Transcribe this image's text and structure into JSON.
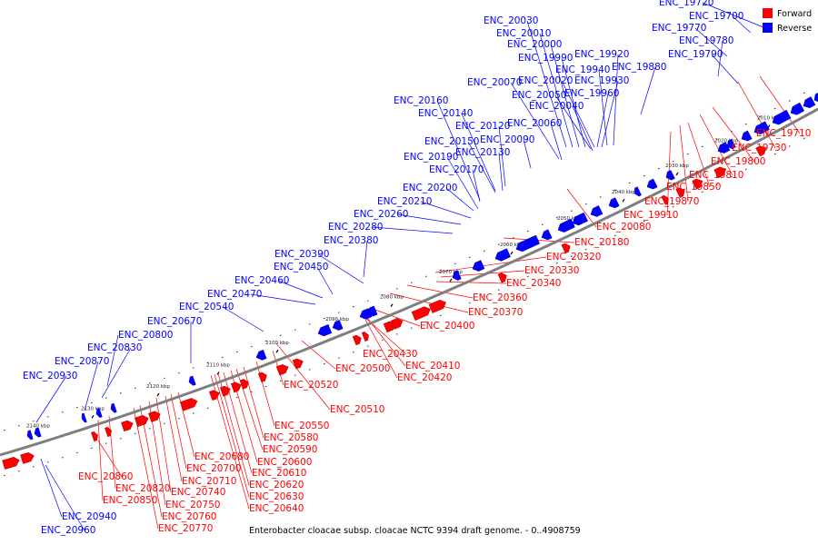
{
  "caption": "Enterobacter cloacae subsp. cloacae NCTC 9394 draft genome. - 0..4908759",
  "legend": [
    {
      "label": "Forward",
      "color": "#ff0000"
    },
    {
      "label": "Reverse",
      "color": "#0000ff"
    }
  ],
  "colors": {
    "forward": "#ff0000",
    "reverse": "#0000ff",
    "backbone": "#7f7f7f"
  },
  "ticks": [
    "2010 kbp",
    "2020 kbp",
    "2030 kbp",
    "2040 kbp",
    "2050 kbp",
    "2060 kbp",
    "2070 kbp",
    "2080 kbp",
    "2090 kbp",
    "2100 kbp",
    "2110 kbp",
    "2120 kbp",
    "2130 kbp",
    "2140 kbp"
  ],
  "reverse_labels": [
    "ENC_19720",
    "ENC_19700",
    "ENC_19770",
    "ENC_19780",
    "ENC_19790",
    "ENC_19880",
    "ENC_19920",
    "ENC_19940",
    "ENC_19930",
    "ENC_19960",
    "ENC_19990",
    "ENC_20000",
    "ENC_20010",
    "ENC_20030",
    "ENC_20020",
    "ENC_20050",
    "ENC_20040",
    "ENC_20070",
    "ENC_20060",
    "ENC_20090",
    "ENC_20120",
    "ENC_20130",
    "ENC_20140",
    "ENC_20150",
    "ENC_20160",
    "ENC_20170",
    "ENC_20190",
    "ENC_20200",
    "ENC_20210",
    "ENC_20260",
    "ENC_20280",
    "ENC_20380",
    "ENC_20390",
    "ENC_20450",
    "ENC_20460",
    "ENC_20470",
    "ENC_20540",
    "ENC_20670",
    "ENC_20800",
    "ENC_20830",
    "ENC_20870",
    "ENC_20930",
    "ENC_20940",
    "ENC_20960"
  ],
  "forward_labels": [
    "ENC_19710",
    "ENC_19730",
    "ENC_19800",
    "ENC_19810",
    "ENC_19850",
    "ENC_19870",
    "ENC_19910",
    "ENC_20080",
    "ENC_20180",
    "ENC_20320",
    "ENC_20330",
    "ENC_20340",
    "ENC_20360",
    "ENC_20370",
    "ENC_20400",
    "ENC_20430",
    "ENC_20410",
    "ENC_20420",
    "ENC_20500",
    "ENC_20510",
    "ENC_20520",
    "ENC_20550",
    "ENC_20580",
    "ENC_20590",
    "ENC_20600",
    "ENC_20610",
    "ENC_20620",
    "ENC_20630",
    "ENC_20640",
    "ENC_20680",
    "ENC_20700",
    "ENC_20710",
    "ENC_20740",
    "ENC_20750",
    "ENC_20760",
    "ENC_20770",
    "ENC_20820",
    "ENC_20850",
    "ENC_20860"
  ]
}
